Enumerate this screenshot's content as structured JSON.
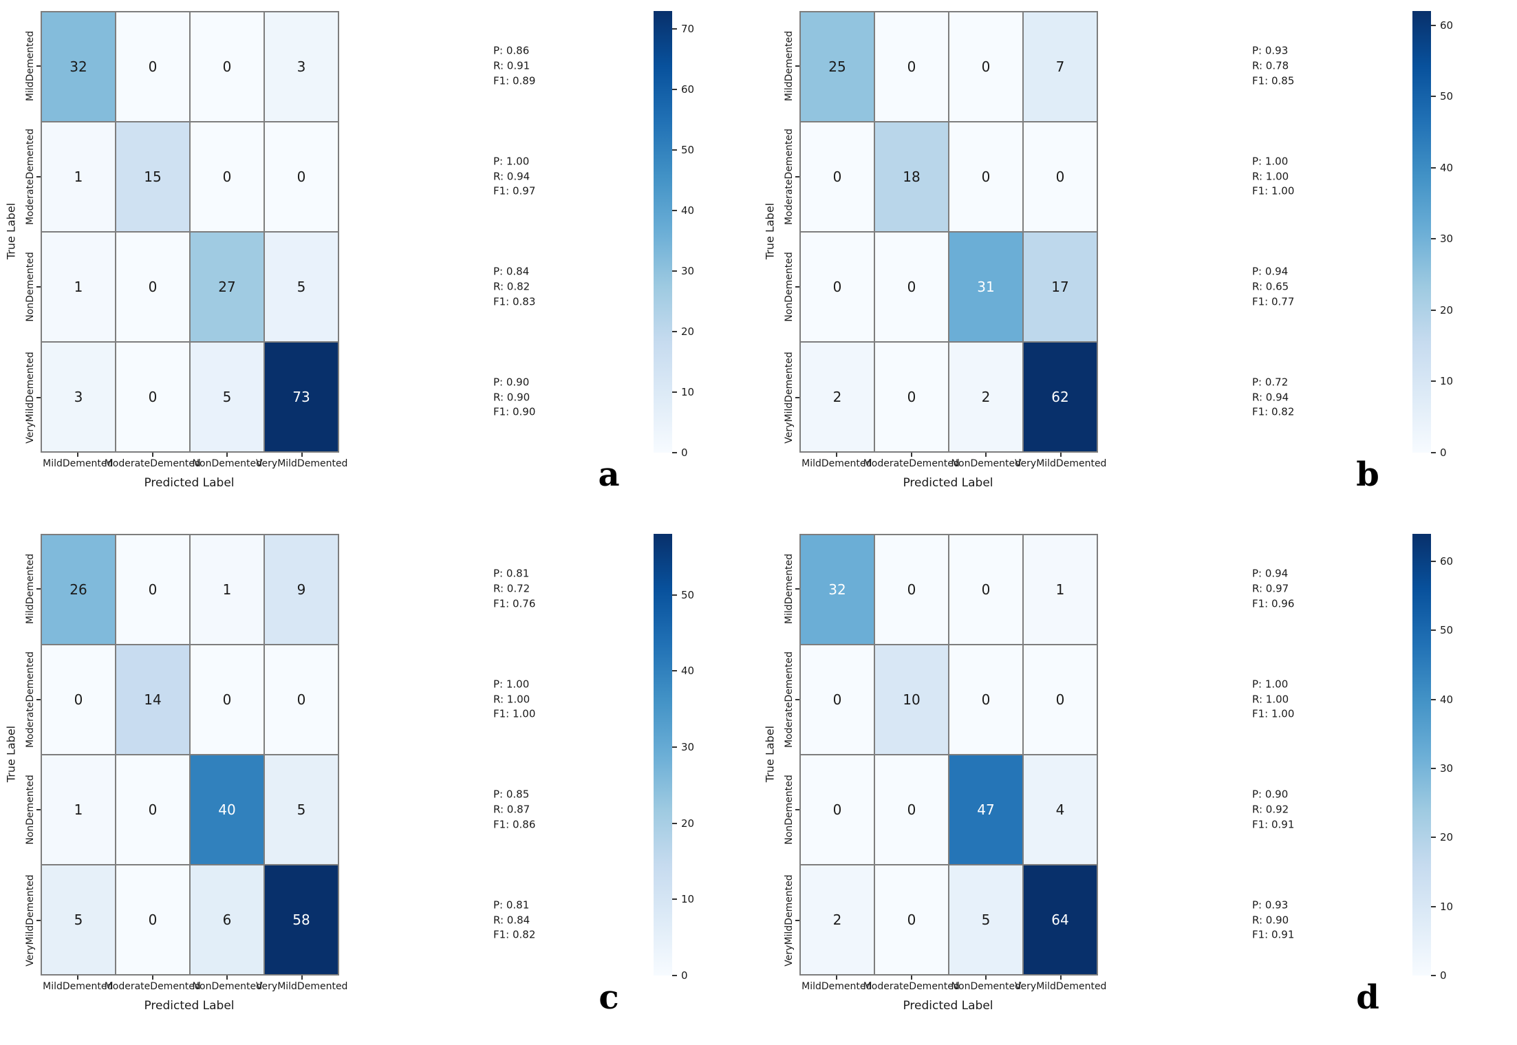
{
  "figure": {
    "axis": {
      "xlabel": "Predicted Label",
      "ylabel": "True Label"
    },
    "metric_labels": {
      "precision": "P",
      "recall": "R",
      "f1": "F1"
    },
    "colors": {
      "colormap_name": "Blues",
      "colormap_stops": [
        "#f7fbff",
        "#deebf7",
        "#c6dbef",
        "#9ecae1",
        "#6baed6",
        "#4292c6",
        "#2171b5",
        "#08519c",
        "#08306b"
      ],
      "gridline": "#7d7d7d",
      "annot_dark": "#1a1a1a",
      "annot_light": "#ffffff"
    }
  },
  "chart_data": [
    {
      "type": "heatmap",
      "panel_letter": "a",
      "title": "",
      "xlabel": "Predicted Label",
      "ylabel": "True Label",
      "categories": [
        "MildDemented",
        "ModerateDemented",
        "NonDemented",
        "VeryMildDemented"
      ],
      "matrix": [
        [
          32,
          0,
          0,
          3
        ],
        [
          1,
          15,
          0,
          0
        ],
        [
          1,
          0,
          27,
          5
        ],
        [
          3,
          0,
          5,
          73
        ]
      ],
      "row_metrics": [
        {
          "P": "0.86",
          "R": "0.91",
          "F1": "0.89"
        },
        {
          "P": "1.00",
          "R": "0.94",
          "F1": "0.97"
        },
        {
          "P": "0.84",
          "R": "0.82",
          "F1": "0.83"
        },
        {
          "P": "0.90",
          "R": "0.90",
          "F1": "0.90"
        }
      ],
      "colorbar": {
        "vmin": 0,
        "vmax": 73,
        "ticks": [
          0,
          10,
          20,
          30,
          40,
          50,
          60,
          70
        ]
      }
    },
    {
      "type": "heatmap",
      "panel_letter": "b",
      "title": "",
      "xlabel": "Predicted Label",
      "ylabel": "True Label",
      "categories": [
        "MildDemented",
        "ModerateDemented",
        "NonDemented",
        "VeryMildDemented"
      ],
      "matrix": [
        [
          25,
          0,
          0,
          7
        ],
        [
          0,
          18,
          0,
          0
        ],
        [
          0,
          0,
          31,
          17
        ],
        [
          2,
          0,
          2,
          62
        ]
      ],
      "row_metrics": [
        {
          "P": "0.93",
          "R": "0.78",
          "F1": "0.85"
        },
        {
          "P": "1.00",
          "R": "1.00",
          "F1": "1.00"
        },
        {
          "P": "0.94",
          "R": "0.65",
          "F1": "0.77"
        },
        {
          "P": "0.72",
          "R": "0.94",
          "F1": "0.82"
        }
      ],
      "colorbar": {
        "vmin": 0,
        "vmax": 62,
        "ticks": [
          0,
          10,
          20,
          30,
          40,
          50,
          60
        ]
      }
    },
    {
      "type": "heatmap",
      "panel_letter": "c",
      "title": "",
      "xlabel": "Predicted Label",
      "ylabel": "True Label",
      "categories": [
        "MildDemented",
        "ModerateDemented",
        "NonDemented",
        "VeryMildDemented"
      ],
      "matrix": [
        [
          26,
          0,
          1,
          9
        ],
        [
          0,
          14,
          0,
          0
        ],
        [
          1,
          0,
          40,
          5
        ],
        [
          5,
          0,
          6,
          58
        ]
      ],
      "row_metrics": [
        {
          "P": "0.81",
          "R": "0.72",
          "F1": "0.76"
        },
        {
          "P": "1.00",
          "R": "1.00",
          "F1": "1.00"
        },
        {
          "P": "0.85",
          "R": "0.87",
          "F1": "0.86"
        },
        {
          "P": "0.81",
          "R": "0.84",
          "F1": "0.82"
        }
      ],
      "colorbar": {
        "vmin": 0,
        "vmax": 58,
        "ticks": [
          0,
          10,
          20,
          30,
          40,
          50
        ]
      }
    },
    {
      "type": "heatmap",
      "panel_letter": "d",
      "title": "",
      "xlabel": "Predicted Label",
      "ylabel": "True Label",
      "categories": [
        "MildDemented",
        "ModerateDemented",
        "NonDemented",
        "VeryMildDemented"
      ],
      "matrix": [
        [
          32,
          0,
          0,
          1
        ],
        [
          0,
          10,
          0,
          0
        ],
        [
          0,
          0,
          47,
          4
        ],
        [
          2,
          0,
          5,
          64
        ]
      ],
      "row_metrics": [
        {
          "P": "0.94",
          "R": "0.97",
          "F1": "0.96"
        },
        {
          "P": "1.00",
          "R": "1.00",
          "F1": "1.00"
        },
        {
          "P": "0.90",
          "R": "0.92",
          "F1": "0.91"
        },
        {
          "P": "0.93",
          "R": "0.90",
          "F1": "0.91"
        }
      ],
      "colorbar": {
        "vmin": 0,
        "vmax": 64,
        "ticks": [
          0,
          10,
          20,
          30,
          40,
          50,
          60
        ]
      }
    }
  ]
}
